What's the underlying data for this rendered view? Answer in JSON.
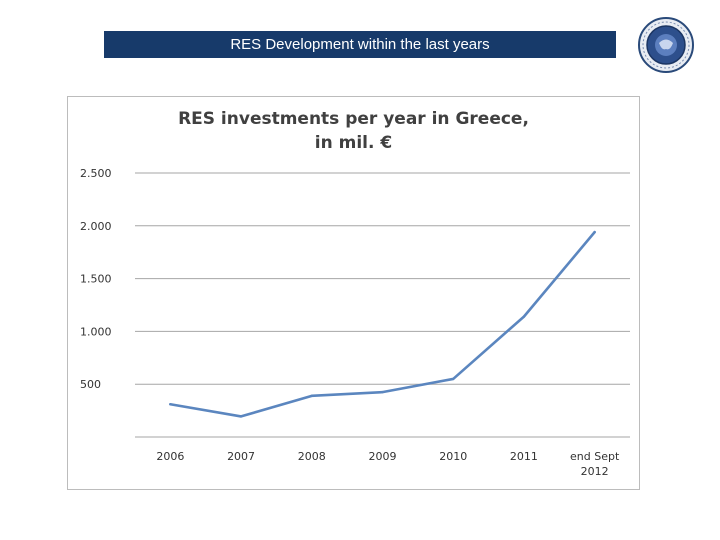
{
  "header": {
    "title": "RES Development within the last years",
    "accent_color": "#173a6a"
  },
  "logo": {
    "icon": "circular-seal-logo"
  },
  "chart_data": {
    "type": "line",
    "title_line1": "RES investments per year in Greece,",
    "title_line2": "in mil. €",
    "categories": [
      "2006",
      "2007",
      "2008",
      "2009",
      "2010",
      "2011",
      "end Sept 2012"
    ],
    "category_lines": [
      [
        "2006"
      ],
      [
        "2007"
      ],
      [
        "2008"
      ],
      [
        "2009"
      ],
      [
        "2010"
      ],
      [
        "2011"
      ],
      [
        "end Sept",
        "2012"
      ]
    ],
    "series": [
      {
        "values": [
          310,
          195,
          390,
          425,
          550,
          1140,
          1940
        ],
        "color": "#5b86bf"
      }
    ],
    "ylim": [
      0,
      2500
    ],
    "yticks": [
      0,
      500,
      1000,
      1500,
      2000,
      2500
    ],
    "ytick_labels": [
      "",
      "500",
      "1.000",
      "1.500",
      "2.000",
      "2.500"
    ],
    "grid": true,
    "legend": "none"
  }
}
